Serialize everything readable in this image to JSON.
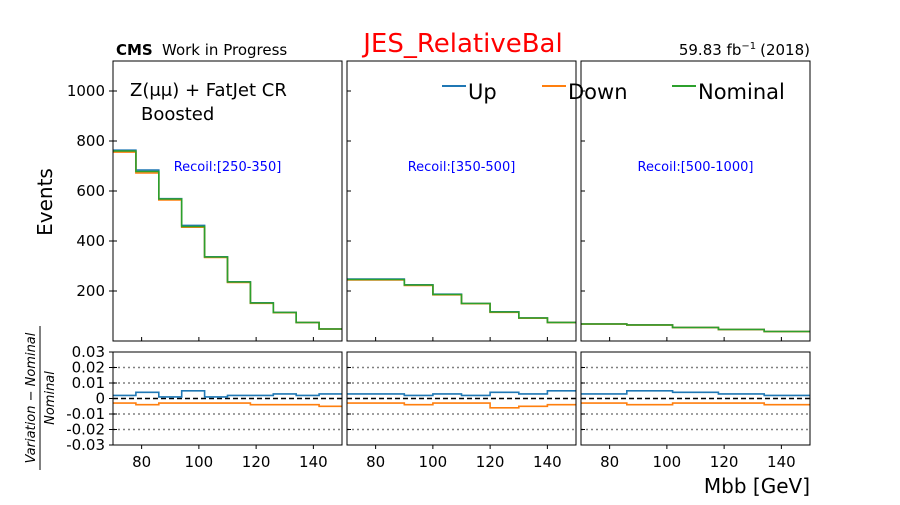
{
  "header": {
    "cms_label": "CMS",
    "cms_sublabel": "Work in Progress",
    "title": "JES_RelativeBal",
    "lumi": "59.83 fb",
    "lumi_exp": "−1",
    "lumi_year": "(2018)"
  },
  "annotation": {
    "region_line1": "Z(μμ) + FatJet CR",
    "region_line2": "Boosted"
  },
  "colors": {
    "up": "#1f77b4",
    "down": "#ff7f0e",
    "nominal": "#2ca02c",
    "title": "#ff0000",
    "recoil": "#0000ff"
  },
  "chart_data": {
    "type": "line",
    "drawstyle": "steps",
    "xlabel": "Mbb [GeV]",
    "ylabel_top": "Events",
    "ylabel_ratio_num": "Variation − Nominal",
    "ylabel_ratio_den": "Nominal",
    "xlim": [
      70,
      150
    ],
    "ylim_top": [
      0,
      1120
    ],
    "ylim_ratio": [
      -0.03,
      0.03
    ],
    "top_yticks": [
      200,
      400,
      600,
      800,
      1000
    ],
    "ratio_yticks": [
      0.03,
      0.02,
      0.01,
      0,
      -0.01,
      -0.02,
      -0.03
    ],
    "ratio_ytick_labels": [
      "0.03",
      "0.02",
      "0.01",
      "0",
      "-0.01",
      "-0.02",
      "-0.03"
    ],
    "xticks": [
      80,
      100,
      120,
      140
    ],
    "grid_dotted_ratio": [
      0.02,
      0.01,
      -0.01,
      -0.02
    ],
    "legend": [
      "Up",
      "Down",
      "Nominal"
    ],
    "legend_placement": "top",
    "panels": [
      {
        "recoil_label": "Recoil:[250-350]",
        "edges": [
          70,
          78,
          86,
          94,
          102,
          110,
          118,
          126,
          134,
          142,
          150
        ],
        "nominal": [
          760,
          678,
          568,
          458,
          336,
          236,
          152,
          114,
          74,
          48
        ],
        "ratio_up": [
          0.002,
          0.004,
          0.001,
          0.005,
          0.001,
          0.002,
          0.002,
          0.003,
          0.002,
          0.003
        ],
        "ratio_down": [
          -0.003,
          -0.004,
          -0.003,
          -0.003,
          -0.003,
          -0.003,
          -0.004,
          -0.004,
          -0.004,
          -0.005
        ]
      },
      {
        "recoil_label": "Recoil:[350-500]",
        "edges": [
          70,
          80,
          90,
          100,
          110,
          120,
          130,
          140,
          150
        ],
        "nominal": [
          246,
          246,
          224,
          186,
          150,
          116,
          92,
          74
        ],
        "ratio_up": [
          0.003,
          0.003,
          0.002,
          0.003,
          0.002,
          0.004,
          0.003,
          0.005
        ],
        "ratio_down": [
          -0.003,
          -0.003,
          -0.004,
          -0.003,
          -0.003,
          -0.006,
          -0.005,
          -0.004
        ]
      },
      {
        "recoil_label": "Recoil:[500-1000]",
        "edges": [
          70,
          86,
          102,
          118,
          134,
          150
        ],
        "nominal": [
          68,
          64,
          54,
          46,
          38
        ],
        "ratio_up": [
          0.003,
          0.005,
          0.004,
          0.003,
          0.002
        ],
        "ratio_down": [
          -0.003,
          -0.004,
          -0.003,
          -0.003,
          -0.004
        ]
      }
    ]
  }
}
